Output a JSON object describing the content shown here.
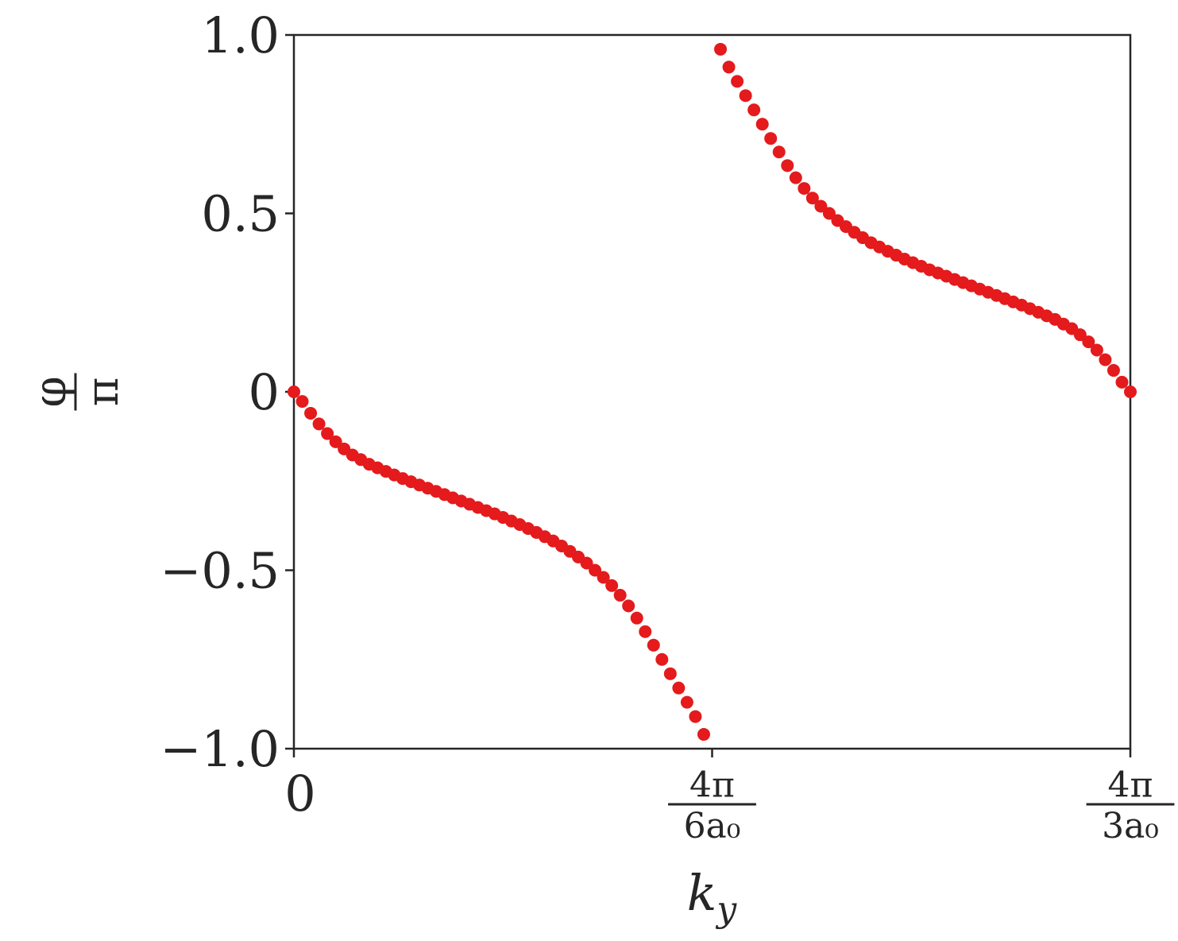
{
  "chart_data": {
    "type": "scatter",
    "xlabel": "k_y",
    "ylabel": "φ/π",
    "color": "#e41a1c",
    "x": [
      0,
      0.01,
      0.02,
      0.03,
      0.04,
      0.05,
      0.06,
      0.07,
      0.08,
      0.09,
      0.1,
      0.11,
      0.12,
      0.13,
      0.14,
      0.15,
      0.16,
      0.17,
      0.18,
      0.19,
      0.2,
      0.21,
      0.22,
      0.23,
      0.24,
      0.25,
      0.26,
      0.27,
      0.28,
      0.29,
      0.3,
      0.31,
      0.32,
      0.33,
      0.34,
      0.35,
      0.36,
      0.37,
      0.38,
      0.39,
      0.4,
      0.41,
      0.42,
      0.43,
      0.44,
      0.45,
      0.46,
      0.47,
      0.48,
      0.49,
      0.51,
      0.52,
      0.53,
      0.54,
      0.55,
      0.56,
      0.57,
      0.58,
      0.59,
      0.6,
      0.61,
      0.62,
      0.63,
      0.64,
      0.65,
      0.66,
      0.67,
      0.68,
      0.69,
      0.7,
      0.71,
      0.72,
      0.73,
      0.74,
      0.75,
      0.76,
      0.77,
      0.78,
      0.79,
      0.8,
      0.81,
      0.82,
      0.83,
      0.84,
      0.85,
      0.86,
      0.87,
      0.88,
      0.89,
      0.9,
      0.91,
      0.92,
      0.93,
      0.94,
      0.95,
      0.96,
      0.97,
      0.98,
      0.99,
      1.0
    ],
    "values": [
      0,
      -0.027,
      -0.06,
      -0.09,
      -0.117,
      -0.14,
      -0.16,
      -0.177,
      -0.19,
      -0.203,
      -0.213,
      -0.223,
      -0.233,
      -0.243,
      -0.252,
      -0.261,
      -0.27,
      -0.279,
      -0.288,
      -0.297,
      -0.306,
      -0.315,
      -0.324,
      -0.333,
      -0.342,
      -0.352,
      -0.362,
      -0.372,
      -0.383,
      -0.394,
      -0.406,
      -0.418,
      -0.432,
      -0.447,
      -0.463,
      -0.48,
      -0.5,
      -0.52,
      -0.543,
      -0.57,
      -0.6,
      -0.634,
      -0.672,
      -0.71,
      -0.75,
      -0.79,
      -0.83,
      -0.87,
      -0.91,
      -0.96,
      0.96,
      0.91,
      0.87,
      0.83,
      0.79,
      0.75,
      0.71,
      0.672,
      0.634,
      0.6,
      0.57,
      0.543,
      0.52,
      0.5,
      0.48,
      0.463,
      0.447,
      0.432,
      0.418,
      0.406,
      0.394,
      0.383,
      0.372,
      0.362,
      0.352,
      0.342,
      0.333,
      0.324,
      0.315,
      0.306,
      0.297,
      0.288,
      0.279,
      0.27,
      0.261,
      0.252,
      0.243,
      0.233,
      0.223,
      0.213,
      0.203,
      0.19,
      0.177,
      0.16,
      0.14,
      0.117,
      0.09,
      0.06,
      0.027,
      0
    ],
    "xlim": [
      0,
      1
    ],
    "xticks": [
      0,
      {
        "value": 0.5,
        "label": "4π/6a₀"
      },
      {
        "value": 1,
        "label": "4π/3a₀"
      }
    ],
    "ylim": [
      -1,
      1
    ],
    "yticks": [
      {
        "value": -1,
        "label": "−1.0"
      },
      {
        "value": -0.5,
        "label": "−0.5"
      },
      0,
      0.5,
      {
        "value": 1,
        "label": "1.0"
      }
    ],
    "grid": false
  }
}
